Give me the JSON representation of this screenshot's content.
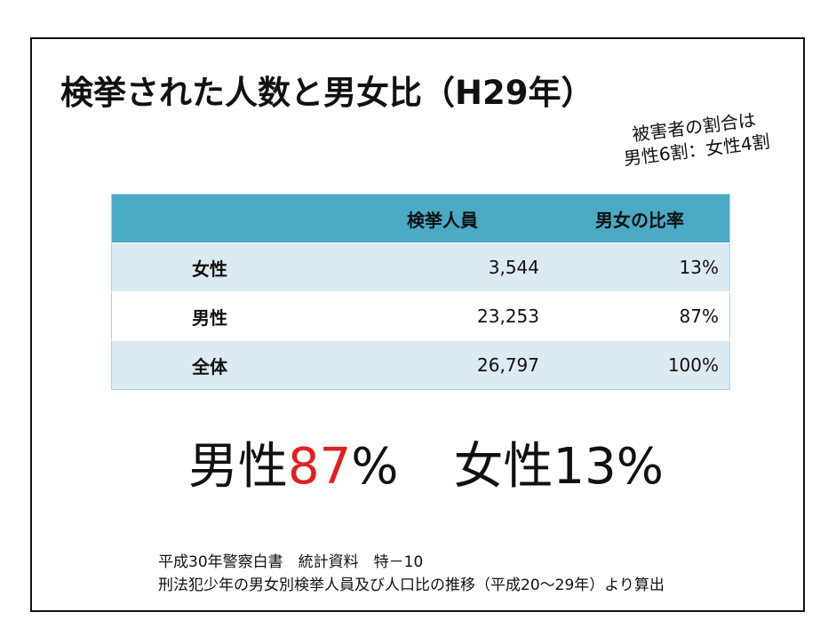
{
  "title": "検挙された人数と男女比（H29年）",
  "note": {
    "lines": [
      "被害者の割合は",
      "男性6割：女性4割"
    ]
  },
  "table": {
    "header": [
      "検挙人員",
      "男女の比率"
    ],
    "rows": [
      [
        "女性",
        "3,544",
        "13%"
      ],
      [
        "男性",
        "23,253",
        "87%"
      ],
      [
        "全体",
        "26,797",
        "100%"
      ]
    ]
  },
  "summary": {
    "male_label": "男性",
    "male_value": "87",
    "male_unit": "%",
    "female": "女性13%"
  },
  "source": {
    "lines": [
      "平成30年警察白書　統計資料　特－10",
      "刑法犯少年の男女別検挙人員及び人口比の推移（平成20～29年）より算出"
    ]
  }
}
